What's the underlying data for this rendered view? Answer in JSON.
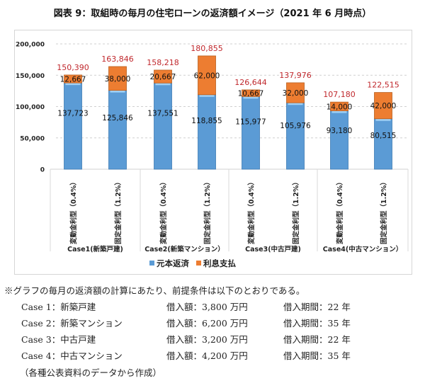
{
  "chart_data": {
    "type": "bar",
    "stacked": true,
    "title": "図表 9：取組時の毎月の住宅ローンの返済額イメージ（2021 年 6 月時点）",
    "ylim": [
      0,
      200000
    ],
    "yticks": [
      "0",
      "50,000",
      "100,000",
      "150,000",
      "200,000"
    ],
    "grid": true,
    "legend_position": "bottom",
    "categories": [
      "変動金利型（0.4%）",
      "固定金利型（1.2%）",
      "変動金利型（0.4%）",
      "固定金利型（1.2%）",
      "変動金利型（0.4%）",
      "固定金利型（1.2%）",
      "変動金利型（0.4%）",
      "固定金利型（1.2%）"
    ],
    "groups": [
      "Case1(新築戸建)",
      "Case2(新築マンション）",
      "Case3(中古戸建)",
      "Case4(中古マンション）"
    ],
    "series": [
      {
        "name": "元本返済",
        "color": "#5b9bd5",
        "values": [
          137723,
          125846,
          137551,
          118855,
          115977,
          105976,
          93180,
          80515
        ],
        "labels": [
          "137,723",
          "125,846",
          "137,551",
          "118,855",
          "115,977",
          "105,976",
          "93,180",
          "80,515"
        ]
      },
      {
        "name": "利息支払",
        "color": "#ed7d31",
        "values": [
          12667,
          38000,
          20667,
          62000,
          10667,
          32000,
          14000,
          42000
        ],
        "labels": [
          "12,667",
          "38,000",
          "20,667",
          "62,000",
          "10,667",
          "32,000",
          "14,000",
          "42,000"
        ]
      }
    ],
    "totals": [
      "150,390",
      "163,846",
      "158,218",
      "180,855",
      "126,644",
      "137,976",
      "107,180",
      "122,515"
    ],
    "total_color": "#c0282d"
  },
  "notes": {
    "intro": "※グラフの毎月の返済額の計算にあたり、前提条件は以下のとおりである。",
    "cases": [
      {
        "name": "Case 1：新築戸建",
        "amount": "借入額：3,800 万円",
        "period": "借入期間：22 年"
      },
      {
        "name": "Case 2：新築マンション",
        "amount": "借入額：6,200 万円",
        "period": "借入期間：35 年"
      },
      {
        "name": "Case 3：中古戸建",
        "amount": "借入額：3,200 万円",
        "period": "借入期間：22 年"
      },
      {
        "name": "Case 4：中古マンション",
        "amount": "借入額：4,200 万円",
        "period": "借入期間：35 年"
      }
    ],
    "source": "（各種公表資料のデータから作成）"
  }
}
